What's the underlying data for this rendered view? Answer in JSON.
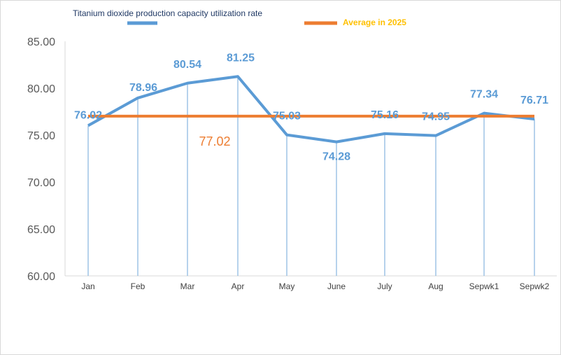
{
  "chart_data": {
    "type": "line",
    "categories": [
      "Jan",
      "Feb",
      "Mar",
      "Apr",
      "May",
      "June",
      "July",
      "Aug",
      "Sepwk1",
      "Sepwk2"
    ],
    "series": [
      {
        "name": "Titanium dioxide production capacity utilization rate",
        "values": [
          76.02,
          78.96,
          80.54,
          81.25,
          75.03,
          74.28,
          75.16,
          74.95,
          77.34,
          76.71
        ],
        "labels": [
          "76.02",
          "78.96",
          "80.54",
          "81.25",
          "75.03",
          "74.28",
          "75.16",
          "74.95",
          "77.34",
          "76.71"
        ],
        "color": "#5b9bd5"
      },
      {
        "name": "Average  in 2025",
        "value": 77.02,
        "label": "77.02",
        "color": "#ed7d31"
      }
    ],
    "ylim": [
      60,
      85
    ],
    "yticks": [
      "60.00",
      "65.00",
      "70.00",
      "75.00",
      "80.00",
      "85.00"
    ],
    "legend_position": "top",
    "grid": false,
    "drop_lines": true
  }
}
